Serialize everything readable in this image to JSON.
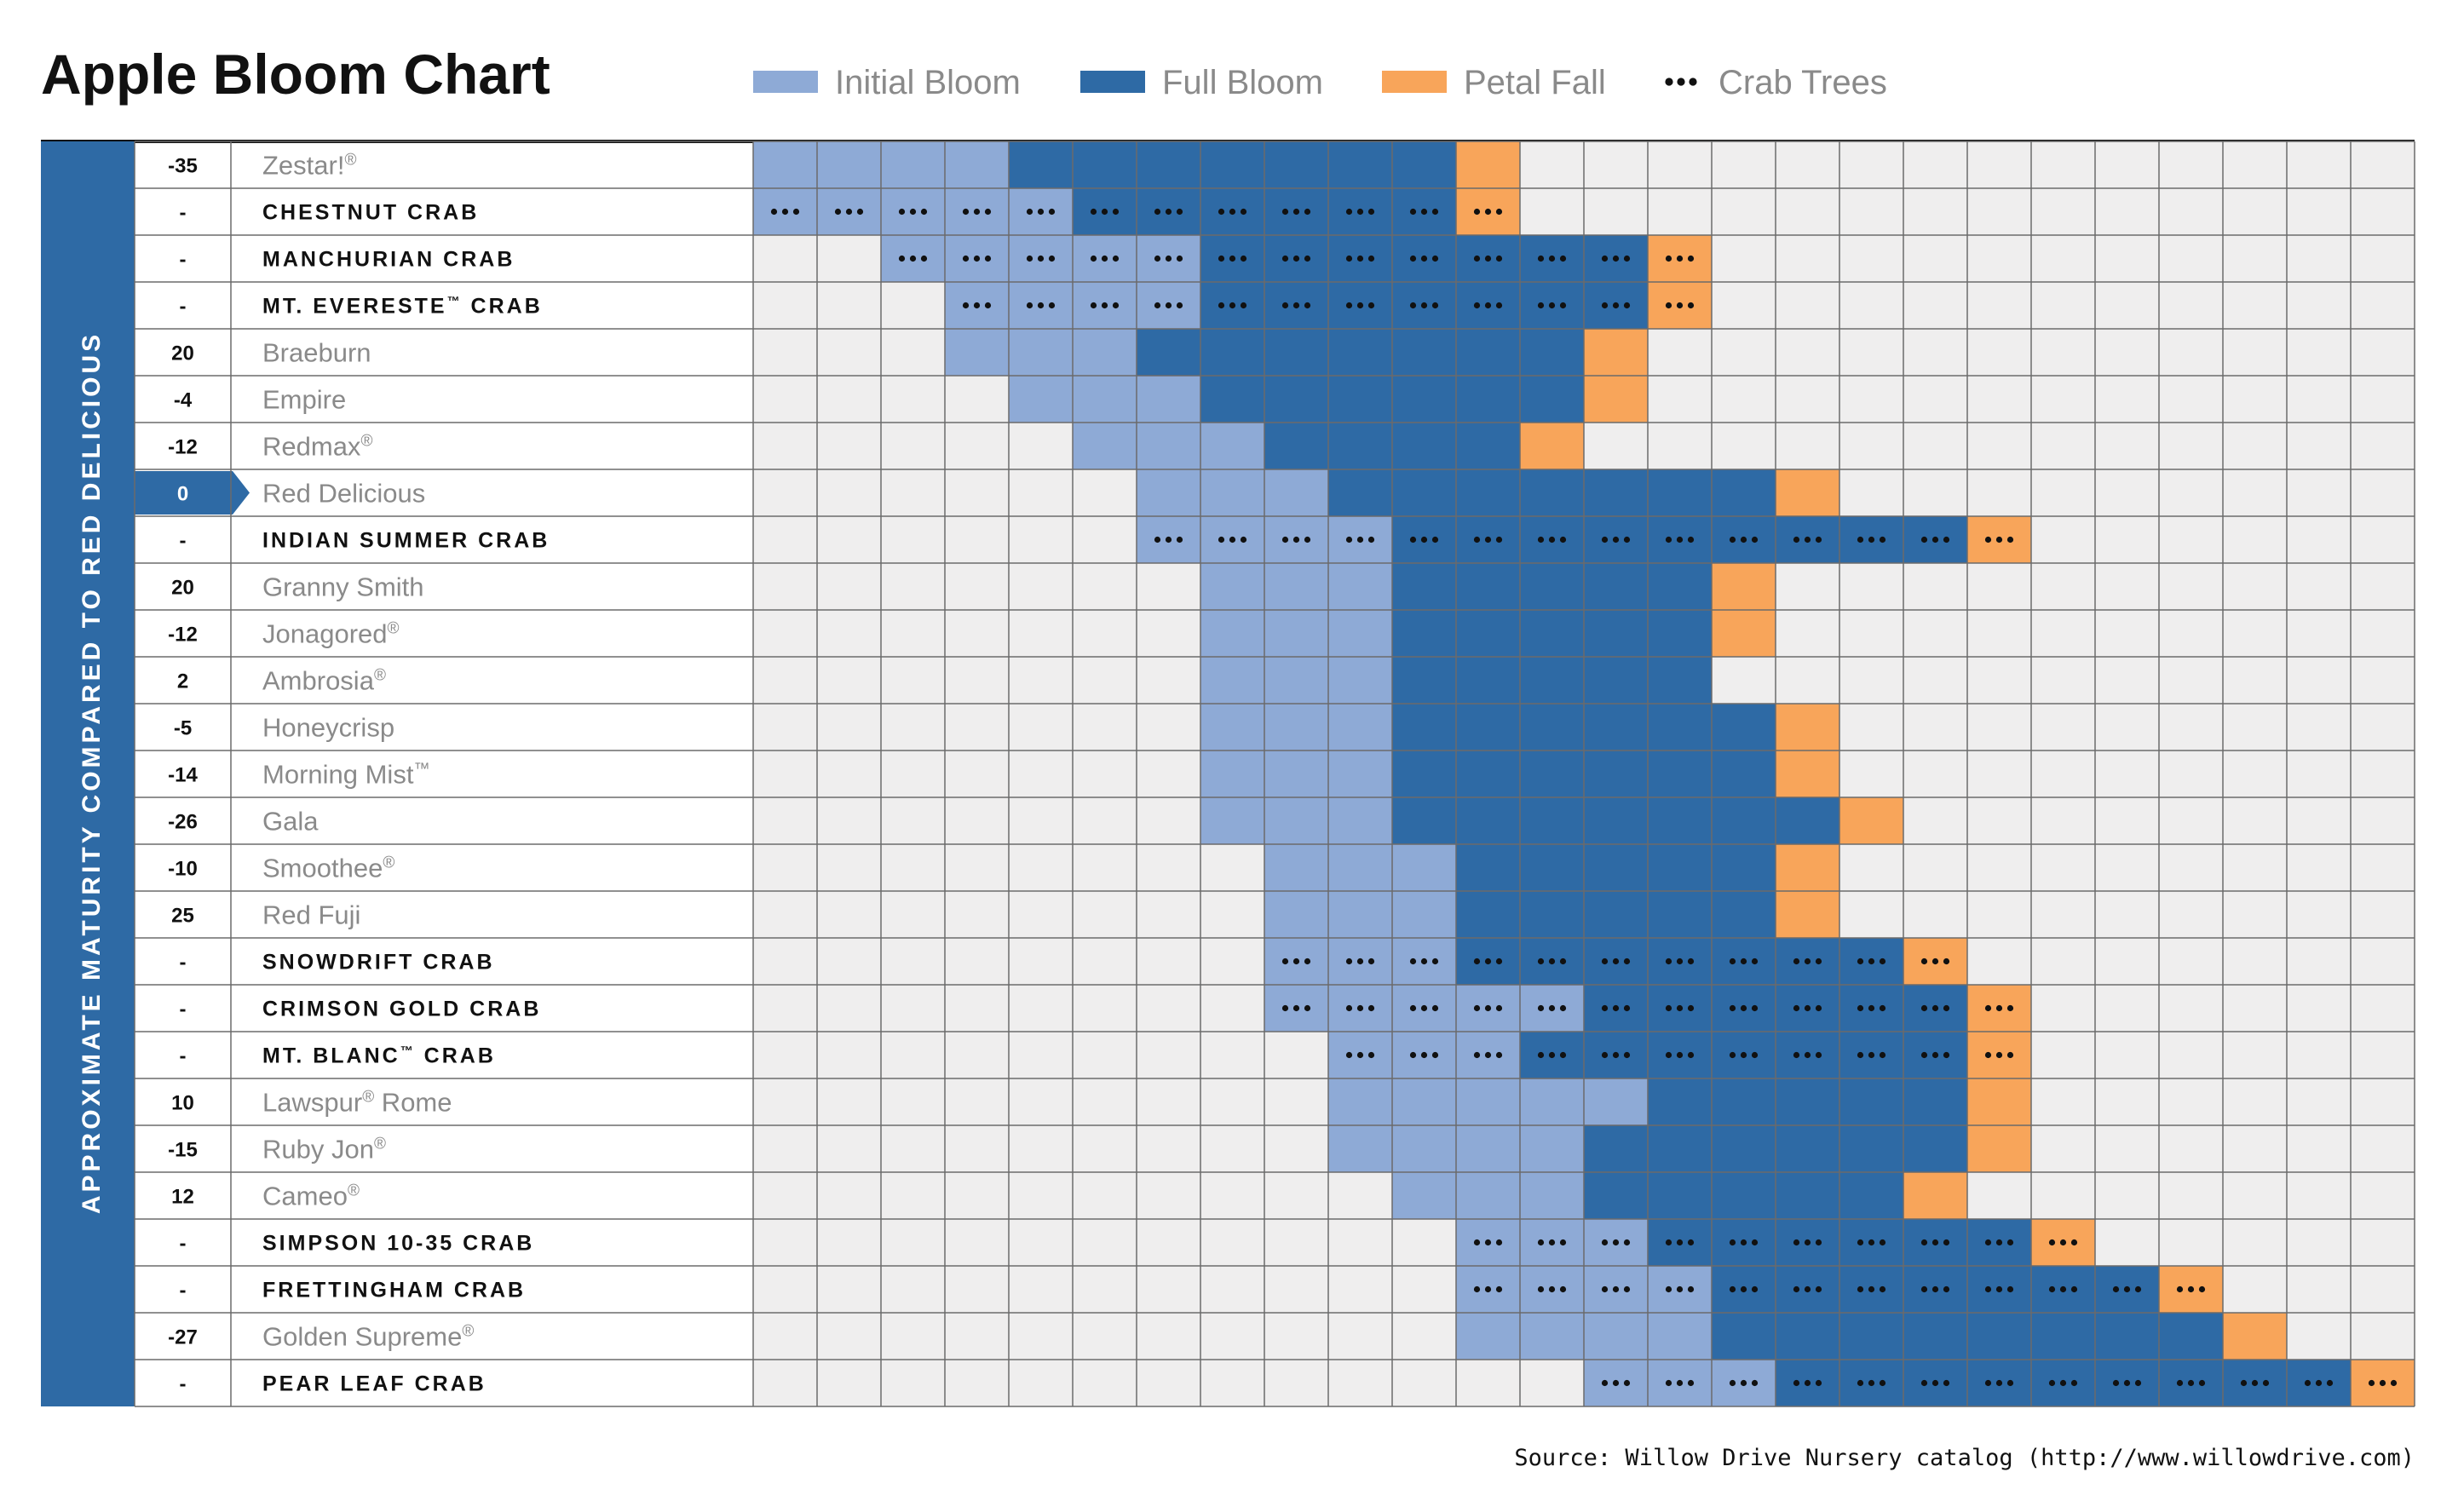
{
  "chart_data": {
    "type": "table",
    "title": "Apple Bloom Chart",
    "row_axis_label": "APPROXIMATE MATURITY COMPARED TO RED DELICIOUS",
    "legend": [
      {
        "key": "I",
        "label": "Initial Bloom",
        "color": "#8eaad6"
      },
      {
        "key": "F",
        "label": "Full Bloom",
        "color": "#2e6aa5"
      },
      {
        "key": "P",
        "label": "Petal Fall",
        "color": "#f8a55a"
      },
      {
        "key": "crab",
        "label": "Crab Trees",
        "marker": "dots"
      }
    ],
    "empty_color": "#efeeee",
    "period_columns": 26,
    "highlight_row": "Red Delicious",
    "rows": [
      {
        "maturity": "-35",
        "name": "Zestar!",
        "mark": "®",
        "crab": false,
        "start": 0,
        "initial": 4,
        "full": 7,
        "petal": 1
      },
      {
        "maturity": "-",
        "name": "CHESTNUT CRAB",
        "mark": "",
        "crab": true,
        "start": 0,
        "initial": 5,
        "full": 6,
        "petal": 1
      },
      {
        "maturity": "-",
        "name": "MANCHURIAN CRAB",
        "mark": "",
        "crab": true,
        "start": 2,
        "initial": 5,
        "full": 7,
        "petal": 1
      },
      {
        "maturity": "-",
        "name": "MT. EVERESTE",
        "mark": "™",
        "suffix": " CRAB",
        "crab": true,
        "start": 3,
        "initial": 4,
        "full": 7,
        "petal": 1
      },
      {
        "maturity": "20",
        "name": "Braeburn",
        "mark": "",
        "crab": false,
        "start": 3,
        "initial": 3,
        "full": 7,
        "petal": 1
      },
      {
        "maturity": "-4",
        "name": "Empire",
        "mark": "",
        "crab": false,
        "start": 4,
        "initial": 3,
        "full": 6,
        "petal": 1
      },
      {
        "maturity": "-12",
        "name": "Redmax",
        "mark": "®",
        "crab": false,
        "start": 5,
        "initial": 3,
        "full": 4,
        "petal": 1
      },
      {
        "maturity": "0",
        "name": "Red Delicious",
        "mark": "",
        "crab": false,
        "start": 6,
        "initial": 3,
        "full": 7,
        "petal": 1
      },
      {
        "maturity": "-",
        "name": "INDIAN SUMMER CRAB",
        "mark": "",
        "crab": true,
        "start": 6,
        "initial": 4,
        "full": 9,
        "petal": 1
      },
      {
        "maturity": "20",
        "name": "Granny Smith",
        "mark": "",
        "crab": false,
        "start": 7,
        "initial": 3,
        "full": 5,
        "petal": 1
      },
      {
        "maturity": "-12",
        "name": "Jonagored",
        "mark": "®",
        "crab": false,
        "start": 7,
        "initial": 3,
        "full": 5,
        "petal": 1
      },
      {
        "maturity": "2",
        "name": "Ambrosia",
        "mark": "®",
        "crab": false,
        "start": 7,
        "initial": 3,
        "full": 5,
        "petal": 0
      },
      {
        "maturity": "-5",
        "name": "Honeycrisp",
        "mark": "",
        "crab": false,
        "start": 7,
        "initial": 3,
        "full": 6,
        "petal": 1
      },
      {
        "maturity": "-14",
        "name": "Morning Mist",
        "mark": "™",
        "crab": false,
        "start": 7,
        "initial": 3,
        "full": 6,
        "petal": 1
      },
      {
        "maturity": "-26",
        "name": "Gala",
        "mark": "",
        "crab": false,
        "start": 7,
        "initial": 3,
        "full": 7,
        "petal": 1
      },
      {
        "maturity": "-10",
        "name": "Smoothee",
        "mark": "®",
        "crab": false,
        "start": 8,
        "initial": 3,
        "full": 5,
        "petal": 1
      },
      {
        "maturity": "25",
        "name": "Red Fuji",
        "mark": "",
        "crab": false,
        "start": 8,
        "initial": 3,
        "full": 5,
        "petal": 1
      },
      {
        "maturity": "-",
        "name": "SNOWDRIFT CRAB",
        "mark": "",
        "crab": true,
        "start": 8,
        "initial": 3,
        "full": 7,
        "petal": 1
      },
      {
        "maturity": "-",
        "name": "CRIMSON GOLD CRAB",
        "mark": "",
        "crab": true,
        "start": 8,
        "initial": 5,
        "full": 6,
        "petal": 1
      },
      {
        "maturity": "-",
        "name": "MT. BLANC",
        "mark": "™",
        "suffix": " CRAB",
        "crab": true,
        "start": 9,
        "initial": 3,
        "full": 7,
        "petal": 1
      },
      {
        "maturity": "10",
        "name": "Lawspur",
        "mark": "®",
        "suffix": " Rome",
        "crab": false,
        "start": 9,
        "initial": 5,
        "full": 5,
        "petal": 1
      },
      {
        "maturity": "-15",
        "name": "Ruby Jon",
        "mark": "®",
        "crab": false,
        "start": 9,
        "initial": 4,
        "full": 6,
        "petal": 1
      },
      {
        "maturity": "12",
        "name": "Cameo",
        "mark": "®",
        "crab": false,
        "start": 10,
        "initial": 3,
        "full": 5,
        "petal": 1
      },
      {
        "maturity": "-",
        "name": "SIMPSON 10-35 CRAB",
        "mark": "",
        "crab": true,
        "start": 11,
        "initial": 3,
        "full": 6,
        "petal": 1
      },
      {
        "maturity": "-",
        "name": "FRETTINGHAM CRAB",
        "mark": "",
        "crab": true,
        "start": 11,
        "initial": 4,
        "full": 7,
        "petal": 1
      },
      {
        "maturity": "-27",
        "name": "Golden Supreme",
        "mark": "®",
        "crab": false,
        "start": 11,
        "initial": 4,
        "full": 8,
        "petal": 1
      },
      {
        "maturity": "-",
        "name": "PEAR LEAF CRAB",
        "mark": "",
        "crab": true,
        "start": 13,
        "initial": 3,
        "full": 9,
        "petal": 1
      }
    ]
  },
  "source": "Source: Willow Drive Nursery catalog (http://www.willowdrive.com)"
}
